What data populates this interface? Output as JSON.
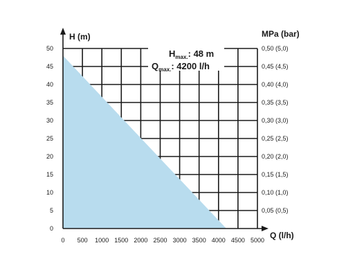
{
  "chart_data": {
    "type": "area",
    "title": "",
    "xlabel": "Q (l/h)",
    "ylabel": "H (m)",
    "y2label": "MPa (bar)",
    "xlim": [
      0,
      5000
    ],
    "ylim": [
      0,
      50
    ],
    "grid": true,
    "x_ticks": [
      "0",
      "500",
      "1000",
      "1500",
      "2000",
      "2500",
      "3000",
      "3500",
      "4000",
      "4500",
      "5000"
    ],
    "y_ticks": [
      "0",
      "5",
      "10",
      "15",
      "20",
      "25",
      "30",
      "35",
      "40",
      "45",
      "50"
    ],
    "y2_ticks": [
      "0,05 (0,5)",
      "0,10 (1,0)",
      "0,15 (1,5)",
      "0,20 (2,0)",
      "0,25 (2,5)",
      "0,30 (3,0)",
      "0,35 (3,5)",
      "0,40 (4,0)",
      "0,45 (4,5)",
      "0,50 (5,0)"
    ],
    "series": [
      {
        "x": [
          0,
          4200
        ],
        "y": [
          48,
          0
        ],
        "color": "#b8dcee"
      }
    ],
    "annotations": {
      "hmax_symbol": "H",
      "hmax_sub": "max.",
      "hmax_value": ": 48 m",
      "qmax_symbol": "Q",
      "qmax_sub": "max.",
      "qmax_value": ": 4200 l/h"
    }
  }
}
